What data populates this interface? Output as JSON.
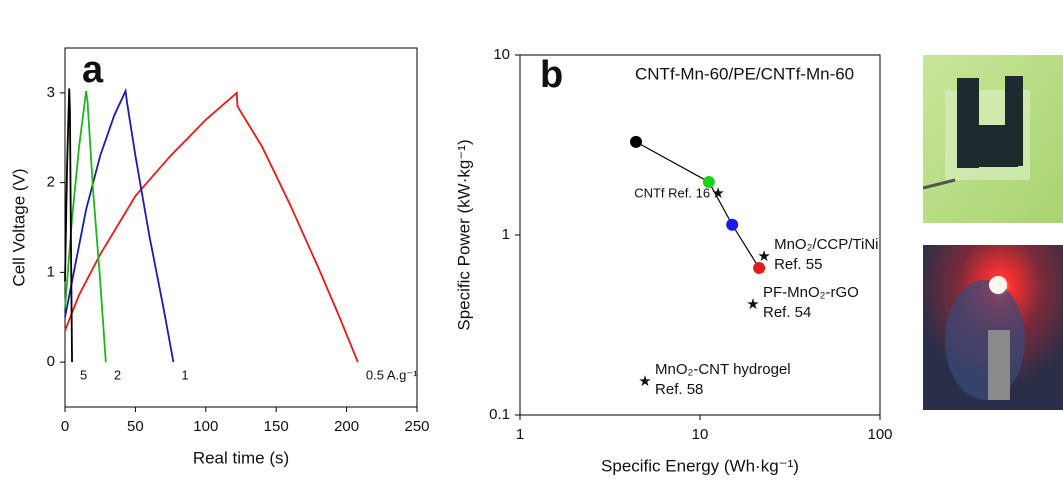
{
  "chart_data": [
    {
      "type": "line",
      "panel": "a",
      "xlabel": "Real time (s)",
      "ylabel": "Cell Voltage (V)",
      "xlim": [
        0,
        250
      ],
      "ylim": [
        -0.5,
        3.5
      ],
      "xticks": [
        0,
        50,
        100,
        150,
        200,
        250
      ],
      "yticks": [
        0,
        1,
        2,
        3
      ],
      "series": [
        {
          "name": "0.5 A.g⁻¹",
          "color": "#e8191b",
          "x": [
            0,
            10,
            25,
            50,
            75,
            100,
            122,
            122.5,
            140,
            160,
            180,
            195,
            208
          ],
          "values": [
            0.35,
            0.75,
            1.2,
            1.85,
            2.3,
            2.7,
            3.0,
            2.85,
            2.4,
            1.75,
            1.05,
            0.5,
            0
          ]
        },
        {
          "name": "1",
          "color": "#1c1ca8",
          "x": [
            0,
            5,
            15,
            25,
            35,
            43,
            44,
            50,
            60,
            70,
            77
          ],
          "values": [
            0.5,
            0.9,
            1.7,
            2.3,
            2.75,
            3.02,
            2.9,
            2.3,
            1.4,
            0.6,
            0
          ]
        },
        {
          "name": "2",
          "color": "#1fb51f",
          "x": [
            0,
            5,
            10,
            15,
            16,
            20,
            25,
            29
          ],
          "values": [
            0.6,
            1.6,
            2.4,
            3.02,
            2.9,
            1.9,
            0.9,
            0
          ]
        },
        {
          "name": "5",
          "color": "#000000",
          "x": [
            0,
            1.5,
            3,
            3.5,
            4.2,
            5
          ],
          "values": [
            0.9,
            2.2,
            3.05,
            2.8,
            1.4,
            0
          ]
        }
      ]
    },
    {
      "type": "scatter",
      "panel": "b",
      "log_x": true,
      "log_y": true,
      "title": "CNTf-Mn-60/PE/CNTf-Mn-60",
      "xlabel": "Specific Energy (Wh·kg⁻¹)",
      "ylabel": "Specific Power (kW·kg⁻¹)",
      "xlim": [
        1,
        100
      ],
      "ylim": [
        0.1,
        10
      ],
      "xticks": [
        1,
        10,
        100
      ],
      "yticks": [
        0.1,
        1,
        10
      ],
      "series": [
        {
          "x": [
            4.41,
            11.2,
            15.1,
            21.3
          ],
          "values": [
            3.29,
            1.97,
            1.14,
            0.656
          ],
          "colors": [
            "#000000",
            "#1fd11f",
            "#1a1aee",
            "#e8191b"
          ],
          "line_color": "#000000"
        }
      ],
      "references": [
        {
          "label": [
            "CNTf Ref. 16"
          ],
          "color": "#3a4fc0",
          "x": 12.6,
          "value": 1.69
        },
        {
          "label": [
            "MnO₂/CCP/TiNi",
            "Ref. 55"
          ],
          "color": "#000000",
          "x": 22.7,
          "value": 0.755
        },
        {
          "label": [
            "PF-MnO₂-rGO",
            "Ref. 54"
          ],
          "color": "#e020e0",
          "x": 19.7,
          "value": 0.408
        },
        {
          "label": [
            "MnO₂-CNT hydrogel",
            "Ref. 58"
          ],
          "color": "#e8191b",
          "x": 4.95,
          "value": 0.152
        }
      ]
    }
  ]
}
